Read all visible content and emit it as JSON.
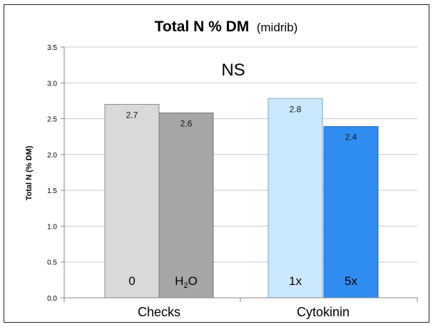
{
  "chart_data": {
    "type": "bar",
    "title_main": "Total N % DM",
    "title_sub": "(midrib)",
    "ylabel": "Total N (% DM)",
    "xlabel": "",
    "ylim": [
      0,
      3.5
    ],
    "y_ticks": [
      "0.0",
      "0.5",
      "1.0",
      "1.5",
      "2.0",
      "2.5",
      "3.0",
      "3.5"
    ],
    "annotation": "NS",
    "groups": [
      "Checks",
      "Cytokinin"
    ],
    "bars": [
      {
        "group": 0,
        "value": 2.7,
        "label": "2.7",
        "base_label": "0",
        "fill": "#d9d9d9",
        "stroke": "#888888"
      },
      {
        "group": 0,
        "value": 2.58,
        "label": "2.6",
        "base_label": "H2O",
        "fill": "#a6a6a6",
        "stroke": "#777777"
      },
      {
        "group": 1,
        "value": 2.78,
        "label": "2.8",
        "base_label": "1x",
        "fill": "#cce8ff",
        "stroke": "#7aa9cf"
      },
      {
        "group": 1,
        "value": 2.39,
        "label": "2.4",
        "base_label": "5x",
        "fill": "#2f8cf0",
        "stroke": "#1f6fc8"
      }
    ],
    "grid": true,
    "legend": "none"
  }
}
